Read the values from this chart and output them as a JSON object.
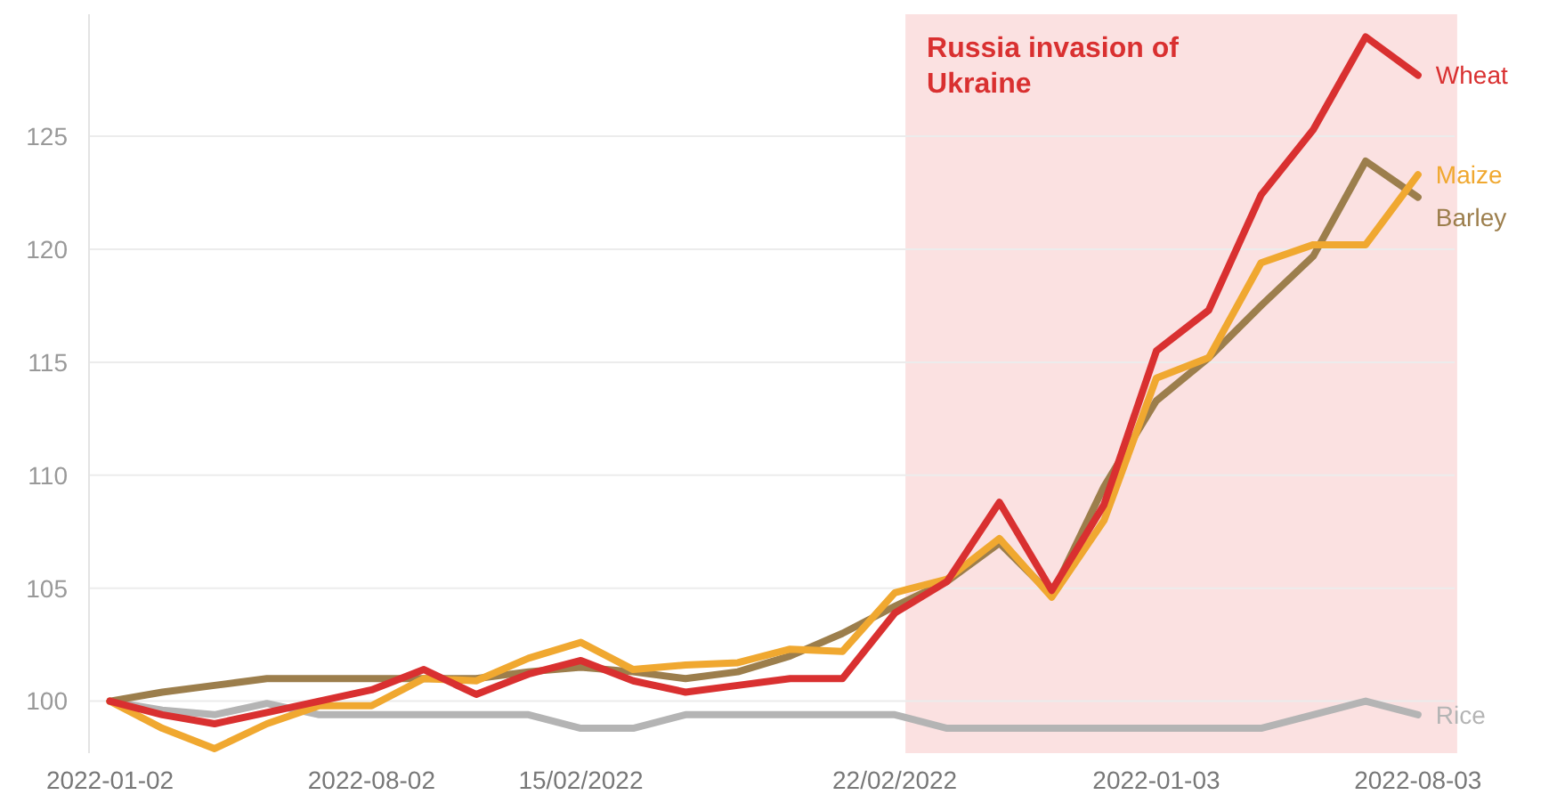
{
  "chart_data": {
    "type": "line",
    "categories": [
      "2022-01-02",
      null,
      null,
      null,
      null,
      "2022-08-02",
      null,
      null,
      null,
      "15/02/2022",
      null,
      null,
      null,
      null,
      null,
      "22/02/2022",
      null,
      null,
      null,
      null,
      "2022-01-03",
      null,
      null,
      null,
      null,
      "2022-08-03"
    ],
    "ylim": [
      97.7,
      130.4
    ],
    "yticks": [
      100,
      105,
      110,
      115,
      120,
      125
    ],
    "grid": "y",
    "legend": false,
    "series": [
      {
        "name": "Rice",
        "color": "#b4b4b4",
        "values": [
          100,
          99.6,
          99.4,
          99.9,
          99.4,
          99.4,
          99.4,
          99.4,
          99.4,
          98.8,
          98.8,
          99.4,
          99.4,
          99.4,
          99.4,
          99.4,
          98.8,
          98.8,
          98.8,
          98.8,
          98.8,
          98.8,
          98.8,
          99.4,
          100,
          99.4
        ]
      },
      {
        "name": "Barley",
        "color": "#9c7e4c",
        "values": [
          100,
          100.4,
          100.7,
          101,
          101,
          101,
          101,
          101,
          101.3,
          101.5,
          101.3,
          101,
          101.3,
          102,
          103,
          104.2,
          105.3,
          107,
          104.7,
          109.5,
          113.3,
          115.2,
          117.5,
          119.7,
          123.9,
          122.3
        ]
      },
      {
        "name": "Maize",
        "color": "#f0a830",
        "values": [
          100,
          98.8,
          97.9,
          99,
          99.8,
          99.8,
          101,
          100.9,
          101.9,
          102.6,
          101.4,
          101.6,
          101.7,
          102.3,
          102.2,
          104.8,
          105.4,
          107.2,
          104.6,
          108,
          114.3,
          115.2,
          119.4,
          120.2,
          120.2,
          123.3
        ]
      },
      {
        "name": "Wheat",
        "color": "#d93030",
        "values": [
          100,
          99.4,
          99,
          99.5,
          100,
          100.5,
          101.4,
          100.3,
          101.2,
          101.8,
          100.9,
          100.4,
          100.7,
          101,
          101,
          103.9,
          105.3,
          108.8,
          104.9,
          108.7,
          115.5,
          117.3,
          122.4,
          125.3,
          129.4,
          127.7
        ]
      }
    ],
    "bands": [
      {
        "axis": "x",
        "from": "22/02/2022",
        "to": "2022-08-03",
        "label": "Russia invasion of Ukraine",
        "color": "#fbe1e1"
      }
    ]
  }
}
